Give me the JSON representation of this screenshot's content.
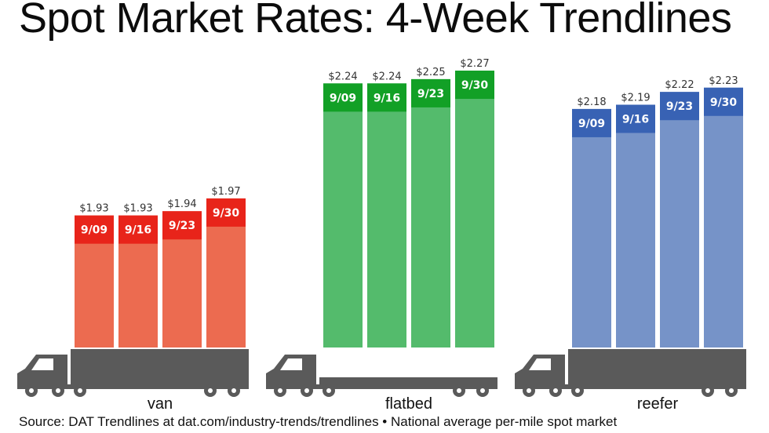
{
  "title": "Spot Market Rates: 4-Week Trendlines",
  "source_note": "Source: DAT Trendlines at dat.com/industry-trends/trendlines • National average per-mile spot market",
  "chart_data": {
    "type": "bar",
    "title": "Spot Market Rates: 4-Week Trendlines",
    "xlabel": "",
    "ylabel": "",
    "ylim": [
      1.62,
      2.3
    ],
    "grid": false,
    "legend": "none",
    "groups": [
      {
        "label": "van",
        "fill_color": "#ec6b50",
        "cap_color": "#e8241a",
        "categories": [
          "9/09",
          "9/16",
          "9/23",
          "9/30"
        ],
        "values": [
          1.93,
          1.93,
          1.94,
          1.97
        ],
        "value_labels": [
          "$1.93",
          "$1.93",
          "$1.94",
          "$1.97"
        ],
        "icon": "truck-icon"
      },
      {
        "label": "flatbed",
        "fill_color": "#54bb6c",
        "cap_color": "#12a026",
        "categories": [
          "9/09",
          "9/16",
          "9/23",
          "9/30"
        ],
        "values": [
          2.24,
          2.24,
          2.25,
          2.27
        ],
        "value_labels": [
          "$2.24",
          "$2.24",
          "$2.25",
          "$2.27"
        ],
        "icon": "truck-icon"
      },
      {
        "label": "reefer",
        "fill_color": "#7693c8",
        "cap_color": "#3862b4",
        "categories": [
          "9/09",
          "9/16",
          "9/23",
          "9/30"
        ],
        "values": [
          2.18,
          2.19,
          2.22,
          2.23
        ],
        "value_labels": [
          "$2.18",
          "$2.19",
          "$2.22",
          "$2.23"
        ],
        "icon": "truck-icon"
      }
    ]
  }
}
